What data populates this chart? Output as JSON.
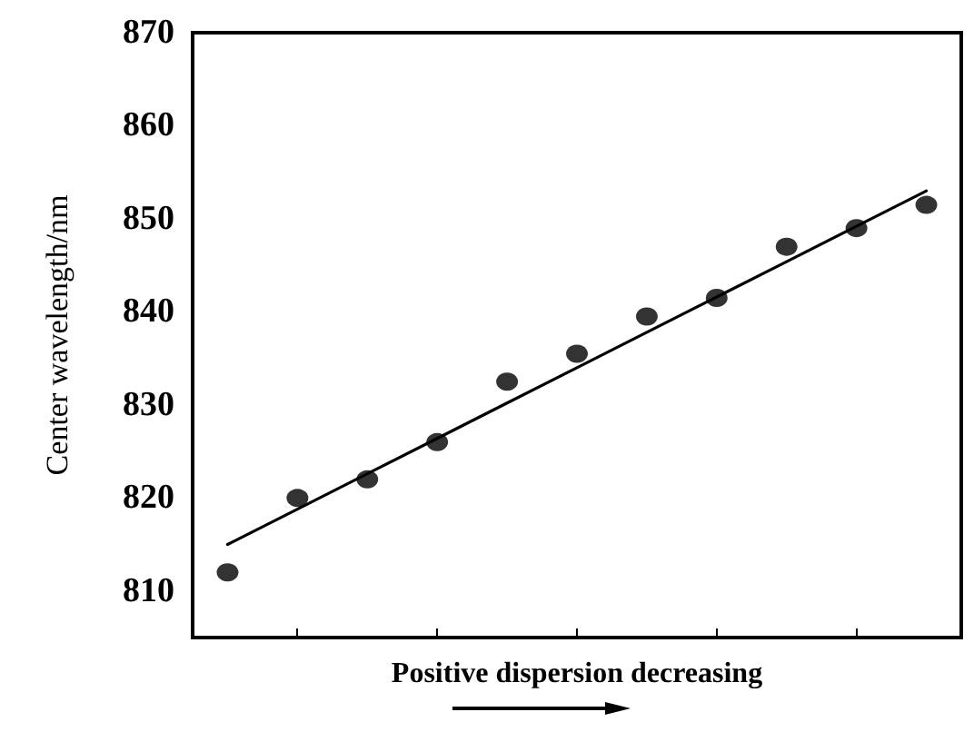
{
  "chart_data": {
    "type": "scatter",
    "xlabel": "Positive dispersion decreasing",
    "ylabel": "Center wavelength/nm",
    "categories": [
      null,
      null,
      null,
      null,
      null,
      null,
      null,
      null,
      null,
      null,
      null
    ],
    "series": [
      {
        "color": "#000000",
        "marker": "circle",
        "values": [
          812,
          820,
          822,
          826,
          832.5,
          835.5,
          839.5,
          841.5,
          847,
          849,
          851.5
        ]
      },
      {
        "type": "line",
        "color": "#000000",
        "marker": "none",
        "line_style": "solid",
        "values": [
          815.0,
          818.8,
          822.6,
          826.4,
          830.2,
          834.0,
          837.8,
          841.6,
          845.4,
          849.2,
          853.0
        ]
      }
    ],
    "ylim": [
      805,
      870
    ],
    "yticks": [
      810,
      820,
      830,
      840,
      850,
      860,
      870
    ],
    "tick_labels": "y"
  }
}
